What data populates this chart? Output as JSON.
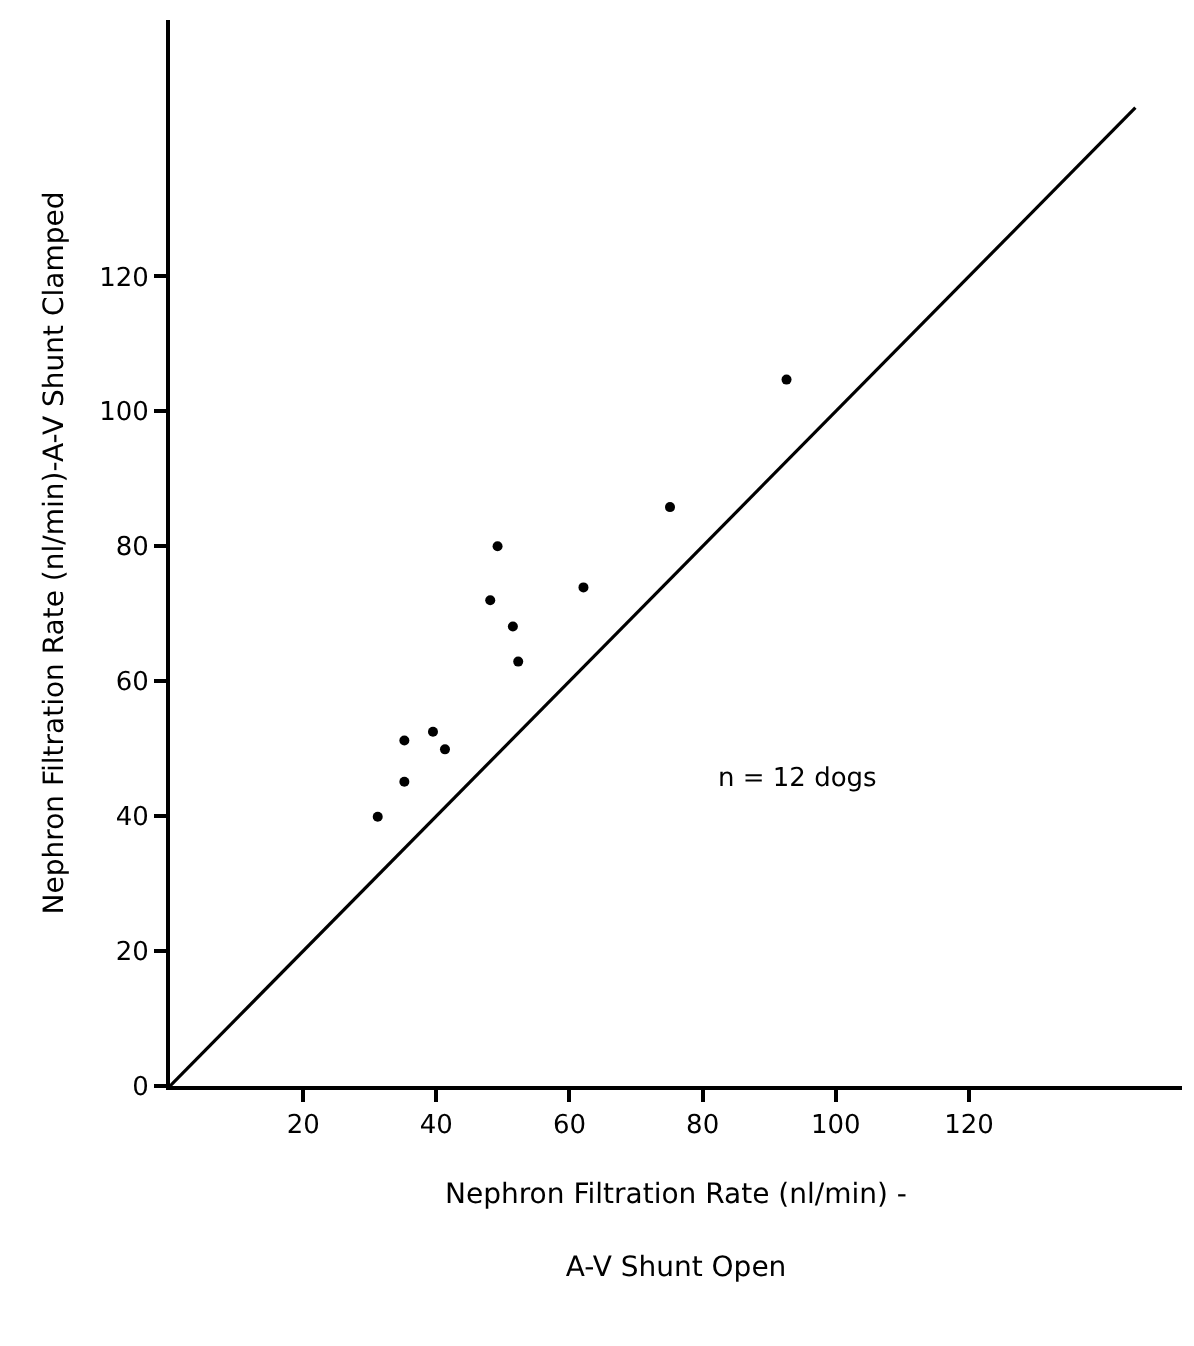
{
  "chart_data": {
    "type": "scatter",
    "xlabel": "Nephron Filtration Rate (nl/min) -\nA-V Shunt Open",
    "ylabel": "Nephron Filtration Rate (nl/min)-A-V Shunt Clamped",
    "xlim": [
      0,
      152
    ],
    "ylim": [
      0,
      158
    ],
    "xticks": [
      20,
      40,
      60,
      80,
      100,
      120
    ],
    "yticks": [
      0,
      20,
      40,
      60,
      80,
      100,
      120
    ],
    "marker": "circle",
    "annotations": [
      "n = 12 dogs"
    ],
    "series": [
      {
        "color": "#000000",
        "x": [
          92.6,
          75.1,
          49.2,
          62.1,
          48.1,
          51.5,
          52.3,
          35.2,
          39.5,
          41.3,
          35.2,
          31.2
        ],
        "values": [
          104.7,
          85.8,
          80,
          73.9,
          72,
          68.1,
          62.9,
          51.2,
          52.5,
          49.9,
          45.1,
          39.9
        ]
      },
      {
        "type": "line",
        "color": "#000000",
        "line_style": "solid",
        "marker": "none",
        "x": [
          0,
          145
        ],
        "values": [
          0,
          145
        ]
      }
    ]
  }
}
